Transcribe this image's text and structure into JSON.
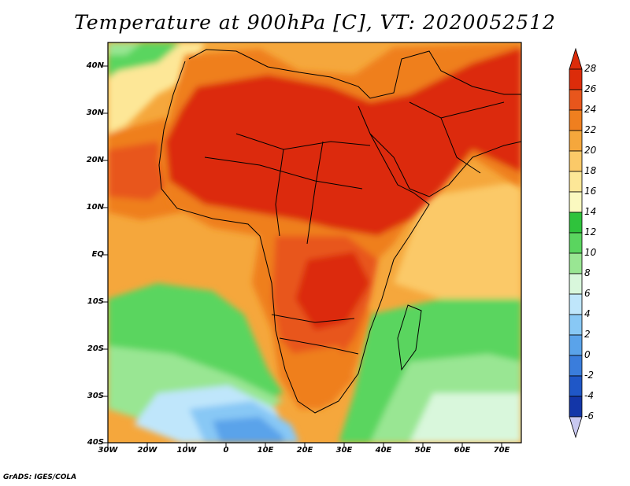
{
  "title": "Temperature at 900hPa [C], VT: 2020052512",
  "footer": "GrADS: IGES/COLA",
  "map": {
    "variable": "Temperature at 900hPa",
    "units": "C",
    "valid_time": "2020052512",
    "lat_labels": [
      "40N",
      "30N",
      "20N",
      "10N",
      "EQ",
      "10S",
      "20S",
      "30S",
      "40S"
    ],
    "lon_labels": [
      "30W",
      "20W",
      "10W",
      "0",
      "10E",
      "20E",
      "30E",
      "40E",
      "50E",
      "60E",
      "70E"
    ]
  },
  "colorbar": {
    "labels": [
      "28",
      "26",
      "24",
      "22",
      "20",
      "18",
      "16",
      "14",
      "12",
      "10",
      "8",
      "6",
      "4",
      "2",
      "0",
      "-2",
      "-4",
      "-6"
    ],
    "colors": [
      "#dc2c0a",
      "#e8561c",
      "#ef7f1f",
      "#f5a73c",
      "#fbc968",
      "#fde797",
      "#fbf9c0",
      "#2fc33c",
      "#5ad55f",
      "#99e693",
      "#d9f7dc",
      "#bfe6fb",
      "#88c8f5",
      "#5aa3ea",
      "#3a7ddc",
      "#1f57c7",
      "#1336a8",
      "#0a1f7e",
      "#c8c8f0"
    ]
  }
}
